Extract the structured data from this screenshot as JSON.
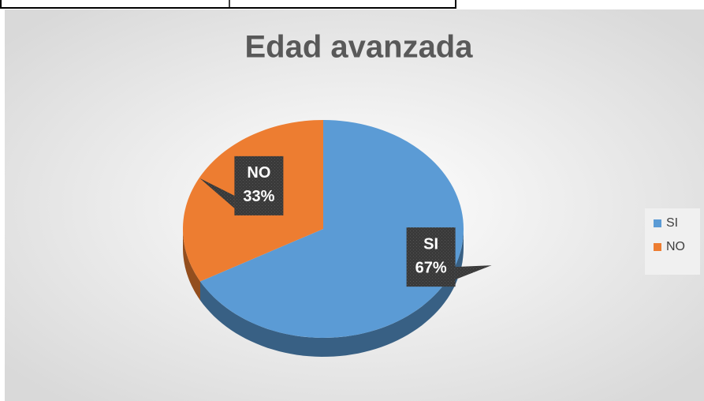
{
  "chart_data": {
    "type": "pie",
    "title": "Edad avanzada",
    "categories": [
      "SI",
      "NO"
    ],
    "values": [
      67,
      33
    ],
    "value_labels": [
      "67%",
      "33%"
    ],
    "colors": [
      "#5b9bd5",
      "#ed7d31"
    ],
    "legend": "right"
  }
}
